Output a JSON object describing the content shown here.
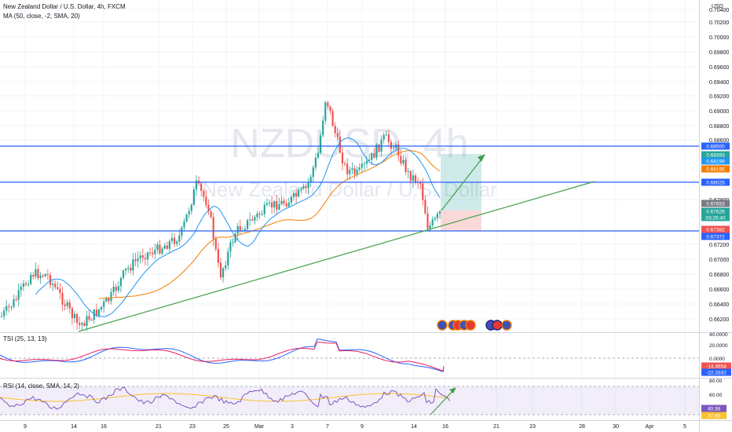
{
  "header": {
    "title": "New Zealand Dollar / U.S. Dollar, 4h, FXCM",
    "indicator": "MA (50, close, -2, SMA, 20)"
  },
  "watermark": {
    "symbol": "NZDUSD, 4h",
    "name": "New Zealand Dollar / U.S. Dollar"
  },
  "currency_label": "USD",
  "tsi": {
    "label": "TSI (25, 13, 13)",
    "ticks": [
      "40.0000",
      "20.0000",
      "0.0000",
      "-20.0000"
    ]
  },
  "rsi": {
    "label": "RSI (14, close, SMA, 14, 2)",
    "ticks": [
      "80.00",
      "60.00",
      "40.00"
    ]
  },
  "price_ticks": [
    "0.70400",
    "0.70200",
    "0.70000",
    "0.69800",
    "0.69600",
    "0.69400",
    "0.69200",
    "0.69000",
    "0.68800",
    "0.68600",
    "0.67800",
    "0.67200",
    "0.67000",
    "0.66800",
    "0.66600",
    "0.66400",
    "0.66200"
  ],
  "time_ticks": [
    "9",
    "14",
    "16",
    "21",
    "23",
    "25",
    "Mar",
    "3",
    "7",
    "9",
    "14",
    "16",
    "21",
    "23",
    "28",
    "30",
    "Apr",
    "5"
  ],
  "price_badges": [
    {
      "text": "0.68500",
      "color": "#2962ff"
    },
    {
      "text": "0.68393",
      "color": "#26a69a"
    },
    {
      "text": "0.68199",
      "color": "#2196f3"
    },
    {
      "text": "0.68196",
      "color": "#f57c00"
    },
    {
      "text": "0.68025",
      "color": "#2962ff"
    },
    {
      "text": "0.67653",
      "color": "#787b86"
    },
    {
      "text": "0.67626",
      "color": "#26a69a"
    },
    {
      "text": "03:26:40",
      "color": "#26a69a"
    },
    {
      "text": "0.67382",
      "color": "#ef5350"
    },
    {
      "text": "0.67372",
      "color": "#2962ff"
    }
  ],
  "tsi_badges": [
    {
      "text": "-14.4654",
      "color": "#ef5350"
    },
    {
      "text": "-22.3332",
      "color": "#2962ff"
    }
  ],
  "rsi_badges": [
    {
      "text": "40.38",
      "color": "#7e57c2"
    },
    {
      "text": "37.90",
      "color": "#fbc02d"
    }
  ],
  "colors": {
    "up": "#26a69a",
    "down": "#ef5350",
    "hline": "#2962ff",
    "trend": "#43a047",
    "ma50": "#2196f3",
    "ma200": "#f57c00"
  },
  "chart_data": {
    "type": "candlestick",
    "symbol": "NZDUSD",
    "interval": "4h",
    "horizontal_levels": [
      0.685,
      0.68025,
      0.67372
    ],
    "trend_line": [
      [
        0.662,
        0.68
      ]
    ],
    "y_range": [
      0.6615,
      0.7045
    ]
  }
}
